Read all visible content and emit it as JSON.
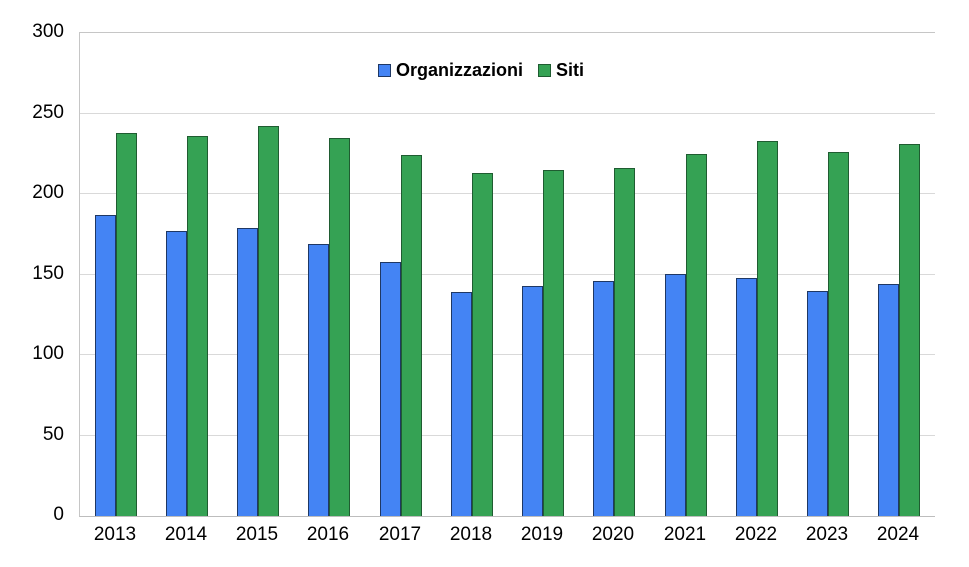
{
  "chart_data": {
    "type": "bar",
    "title": "",
    "xlabel": "",
    "ylabel": "",
    "categories": [
      "2013",
      "2014",
      "2015",
      "2016",
      "2017",
      "2018",
      "2019",
      "2020",
      "2021",
      "2022",
      "2023",
      "2024"
    ],
    "series": [
      {
        "name": "Organizzazioni",
        "color": "#4484f4",
        "border_color": "#1f3864",
        "values": [
          187,
          177,
          179,
          169,
          158,
          139,
          143,
          146,
          150,
          148,
          140,
          144
        ]
      },
      {
        "name": "Siti",
        "color": "#35a254",
        "border_color": "#1f5c31",
        "values": [
          238,
          236,
          242,
          235,
          224,
          213,
          215,
          216,
          225,
          233,
          226,
          231
        ]
      }
    ],
    "ylim": [
      0,
      300
    ],
    "y_ticks": [
      0,
      50,
      100,
      150,
      200,
      250,
      300
    ],
    "grid": true,
    "legend_position": "top-center"
  },
  "style_colors": {
    "gridline": "#d9d9d9",
    "plot_border": "#c6c6c6",
    "text": "#000000",
    "background": "#ffffff"
  }
}
